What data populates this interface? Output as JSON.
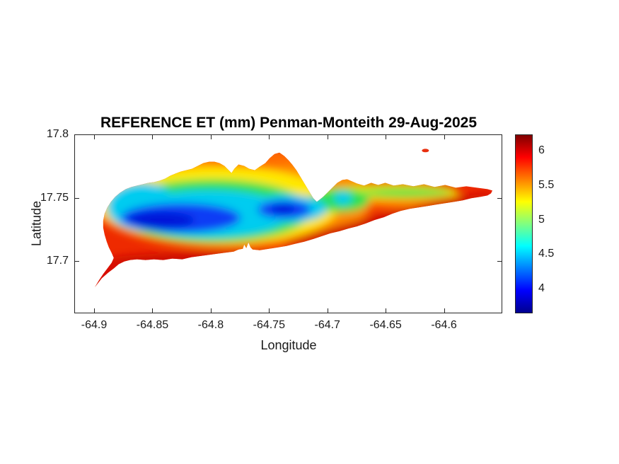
{
  "chart_data": {
    "type": "heatmap",
    "title": "REFERENCE ET (mm) Penman-Monteith 29-Aug-2025",
    "xlabel": "Longitude",
    "ylabel": "Latitude",
    "xlim": [
      -64.917,
      -64.55
    ],
    "ylim": [
      17.659,
      17.8
    ],
    "x_ticks": [
      -64.9,
      -64.85,
      -64.8,
      -64.75,
      -64.7,
      -64.65,
      -64.6
    ],
    "x_tick_labels": [
      "-64.9",
      "-64.85",
      "-64.8",
      "-64.75",
      "-64.7",
      "-64.65",
      "-64.6"
    ],
    "y_ticks": [
      17.8,
      17.75,
      17.7
    ],
    "y_tick_labels": [
      "17.8",
      "17.75",
      "17.7"
    ],
    "grid": false,
    "legend": "none",
    "colorbar": {
      "location": "right",
      "clim": [
        3.64,
        6.24
      ],
      "ticks": [
        4,
        4.5,
        5,
        5.5,
        6
      ],
      "tick_labels": [
        "4",
        "4.5",
        "5",
        "5.5",
        "6"
      ]
    },
    "colormap": {
      "name": "jet",
      "stops": [
        {
          "pos": 0.0,
          "color": "#00008f"
        },
        {
          "pos": 0.125,
          "color": "#0000ff"
        },
        {
          "pos": 0.375,
          "color": "#00ffff"
        },
        {
          "pos": 0.625,
          "color": "#ffff00"
        },
        {
          "pos": 0.875,
          "color": "#ff0000"
        },
        {
          "pos": 1.0,
          "color": "#800000"
        }
      ]
    },
    "field_summary": [
      {
        "area": "west-central interior low (dark blue core)",
        "lon": -64.84,
        "lat": 17.735,
        "et_mm": 4.0
      },
      {
        "area": "secondary interior low (blue patch)",
        "lon": -64.77,
        "lat": 17.737,
        "et_mm": 4.2
      },
      {
        "area": "north coast band (yellow-orange)",
        "lon": -64.79,
        "lat": 17.765,
        "et_mm": 5.6
      },
      {
        "area": "south coast band (red)",
        "lon": -64.8,
        "lat": 17.695,
        "et_mm": 6.2
      },
      {
        "area": "eastern ridge line (green strip)",
        "lon": -64.64,
        "lat": 17.752,
        "et_mm": 5.1
      },
      {
        "area": "east tip (red)",
        "lon": -64.57,
        "lat": 17.753,
        "et_mm": 6.1
      },
      {
        "area": "southwest tip (red)",
        "lon": -64.9,
        "lat": 17.682,
        "et_mm": 6.2
      },
      {
        "area": "small offshore islet to the northeast",
        "lon": -64.62,
        "lat": 17.787,
        "et_mm": 6.1
      }
    ]
  }
}
